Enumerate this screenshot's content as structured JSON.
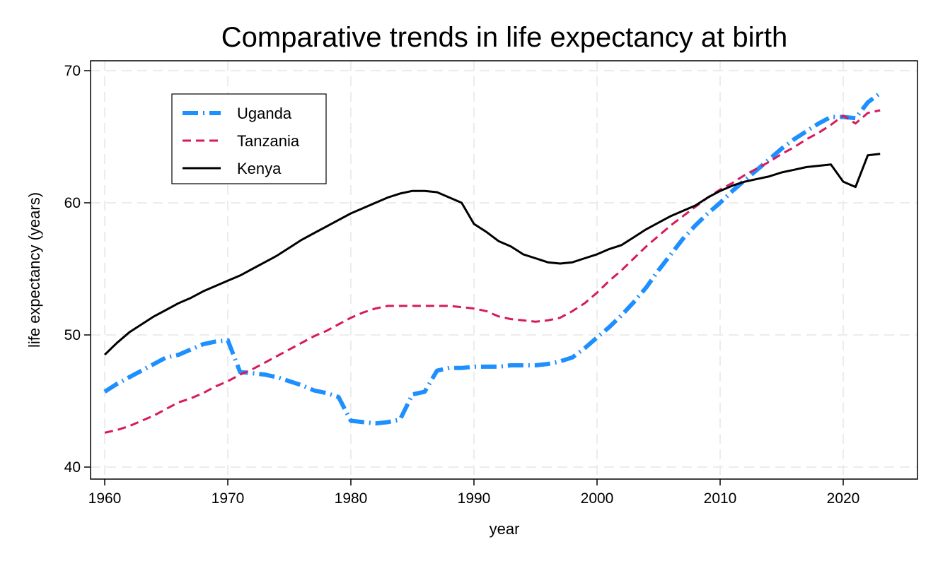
{
  "chart_data": {
    "type": "line",
    "title": "Comparative trends in life expectancy at birth",
    "xlabel": "year",
    "ylabel": "life expectancy (years)",
    "xlim": [
      1959,
      2026
    ],
    "ylim": [
      39.1,
      73.8
    ],
    "xticks": [
      1960,
      1970,
      1980,
      1990,
      2000,
      2010,
      2020
    ],
    "yticks": [
      40,
      50,
      60,
      70
    ],
    "grid": true,
    "legend_position": "top-left",
    "x": [
      1960,
      1961,
      1962,
      1963,
      1964,
      1965,
      1966,
      1967,
      1968,
      1969,
      1970,
      1971,
      1972,
      1973,
      1974,
      1975,
      1976,
      1977,
      1978,
      1979,
      1980,
      1981,
      1982,
      1983,
      1984,
      1985,
      1986,
      1987,
      1988,
      1989,
      1990,
      1991,
      1992,
      1993,
      1994,
      1995,
      1996,
      1997,
      1998,
      1999,
      2000,
      2001,
      2002,
      2003,
      2004,
      2005,
      2006,
      2007,
      2008,
      2009,
      2010,
      2011,
      2012,
      2013,
      2014,
      2015,
      2016,
      2017,
      2018,
      2019,
      2020,
      2021,
      2022,
      2023
    ],
    "series": [
      {
        "name": "Uganda",
        "color": "#1E8FFF",
        "style": "dash-dot",
        "values": [
          45.7,
          46.3,
          46.8,
          47.3,
          47.8,
          48.3,
          48.5,
          48.9,
          49.3,
          49.5,
          49.6,
          47.2,
          47.1,
          47.0,
          46.8,
          46.5,
          46.2,
          45.8,
          45.6,
          45.3,
          43.5,
          43.4,
          43.3,
          43.4,
          43.6,
          45.5,
          45.7,
          47.3,
          47.5,
          47.5,
          47.6,
          47.6,
          47.6,
          47.7,
          47.7,
          47.7,
          47.8,
          48.0,
          48.3,
          49.0,
          49.8,
          50.6,
          51.5,
          52.5,
          53.6,
          54.9,
          56.1,
          57.3,
          58.3,
          59.2,
          60.0,
          60.9,
          61.7,
          62.5,
          63.3,
          64.1,
          64.8,
          65.4,
          66.0,
          66.5,
          66.5,
          66.4,
          67.6,
          68.3
        ]
      },
      {
        "name": "Tanzania",
        "color": "#D71A5B",
        "style": "dash",
        "values": [
          42.6,
          42.8,
          43.1,
          43.5,
          43.9,
          44.4,
          44.9,
          45.2,
          45.6,
          46.1,
          46.5,
          47.0,
          47.4,
          47.9,
          48.4,
          48.9,
          49.4,
          49.9,
          50.3,
          50.8,
          51.3,
          51.7,
          52.0,
          52.2,
          52.2,
          52.2,
          52.2,
          52.2,
          52.2,
          52.1,
          52.0,
          51.8,
          51.4,
          51.2,
          51.1,
          51.0,
          51.1,
          51.3,
          51.8,
          52.4,
          53.2,
          54.1,
          54.9,
          55.8,
          56.7,
          57.5,
          58.3,
          59.0,
          59.7,
          60.4,
          61.0,
          61.5,
          62.1,
          62.6,
          63.1,
          63.7,
          64.2,
          64.8,
          65.3,
          65.9,
          66.6,
          66.0,
          66.8,
          67.0
        ]
      },
      {
        "name": "Kenya",
        "color": "#000000",
        "style": "solid",
        "values": [
          48.5,
          49.4,
          50.2,
          50.8,
          51.4,
          51.9,
          52.4,
          52.8,
          53.3,
          53.7,
          54.1,
          54.5,
          55.0,
          55.5,
          56.0,
          56.6,
          57.2,
          57.7,
          58.2,
          58.7,
          59.2,
          59.6,
          60.0,
          60.4,
          60.7,
          60.9,
          60.9,
          60.8,
          60.4,
          60.0,
          58.4,
          57.8,
          57.1,
          56.7,
          56.1,
          55.8,
          55.5,
          55.4,
          55.5,
          55.8,
          56.1,
          56.5,
          56.8,
          57.4,
          58.0,
          58.5,
          59.0,
          59.4,
          59.8,
          60.4,
          60.9,
          61.3,
          61.6,
          61.8,
          62.0,
          62.3,
          62.5,
          62.7,
          62.8,
          62.9,
          61.6,
          61.2,
          63.6,
          63.7
        ]
      }
    ]
  }
}
